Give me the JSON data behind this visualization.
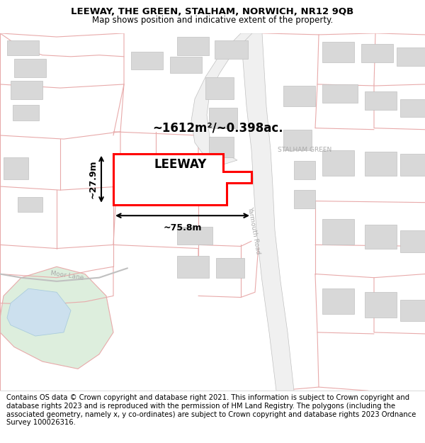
{
  "title_line1": "LEEWAY, THE GREEN, STALHAM, NORWICH, NR12 9QB",
  "title_line2": "Map shows position and indicative extent of the property.",
  "footer_text": "Contains OS data © Crown copyright and database right 2021. This information is subject to Crown copyright and database rights 2023 and is reproduced with the permission of HM Land Registry. The polygons (including the associated geometry, namely x, y co-ordinates) are subject to Crown copyright and database rights 2023 Ordnance Survey 100026316.",
  "area_label": "~1612m²/~0.398ac.",
  "property_label": "LEEWAY",
  "width_label": "~75.8m",
  "height_label": "~27.9m",
  "road_label_yarmouth": "Yarmouth Road",
  "road_label_moor": "Moor Lane",
  "stalham_green_label": "STALHAM GREEN",
  "map_bg": "#ffffff",
  "boundary_color": "#e8aaaa",
  "road_line_color": "#c0c0c0",
  "building_color": "#d8d8d8",
  "building_edge": "#c0c0c0",
  "park_color": "#ddeedd",
  "water_color": "#cce0ee",
  "property_outline_color": "#ff0000",
  "property_fill_color": "#ffffff",
  "title_fontsize": 9.5,
  "subtitle_fontsize": 8.5,
  "footer_fontsize": 7.2,
  "label_color": "#aaaaaa",
  "annotation_color": "#000000"
}
